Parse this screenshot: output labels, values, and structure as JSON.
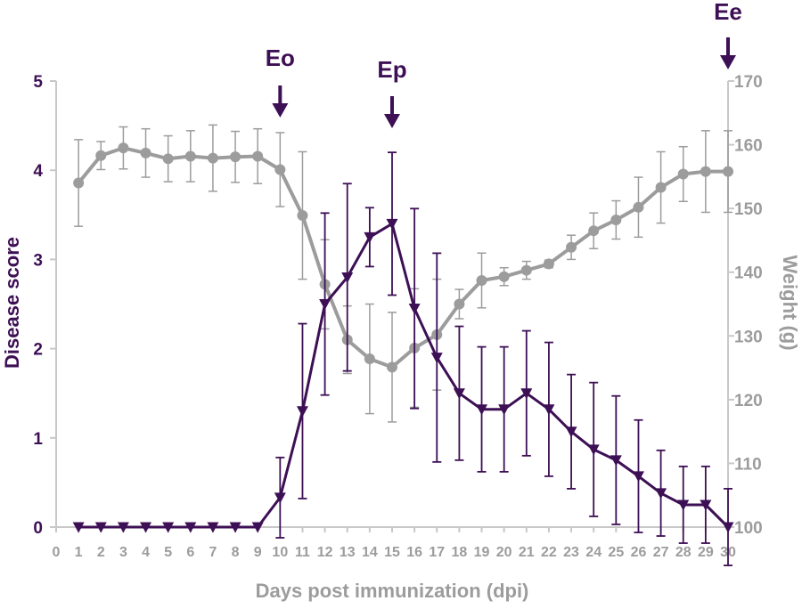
{
  "chart_data": {
    "type": "line",
    "xlabel": "Days post immunization (dpi)",
    "x": [
      1,
      2,
      3,
      4,
      5,
      6,
      7,
      8,
      9,
      10,
      11,
      12,
      13,
      14,
      15,
      16,
      17,
      18,
      19,
      20,
      21,
      22,
      23,
      24,
      25,
      26,
      27,
      28,
      29,
      30
    ],
    "x_ticks": [
      0,
      1,
      2,
      3,
      4,
      5,
      6,
      7,
      8,
      9,
      10,
      11,
      12,
      13,
      14,
      15,
      16,
      17,
      18,
      19,
      20,
      21,
      22,
      23,
      24,
      25,
      26,
      27,
      28,
      29,
      30
    ],
    "xlim": [
      0,
      30
    ],
    "y_left": {
      "label": "Disease score",
      "lim": [
        0,
        5
      ],
      "ticks": [
        0,
        1,
        2,
        3,
        4,
        5
      ],
      "color": "#3d0f55"
    },
    "y_right": {
      "label": "Weight (g)",
      "lim": [
        100,
        170
      ],
      "ticks": [
        100,
        110,
        120,
        130,
        140,
        150,
        160,
        170
      ],
      "color": "#9c9c9c"
    },
    "grid": false,
    "series": [
      {
        "axis": "left",
        "marker": "triangle-down",
        "color": "#3d0f55",
        "values": [
          0,
          0,
          0,
          0,
          0,
          0,
          0,
          0,
          0,
          0.33,
          1.3,
          2.5,
          2.8,
          3.25,
          3.4,
          2.45,
          1.9,
          1.5,
          1.32,
          1.32,
          1.5,
          1.32,
          1.07,
          0.87,
          0.75,
          0.57,
          0.38,
          0.25,
          0.25,
          0
        ],
        "error": [
          0,
          0,
          0,
          0,
          0,
          0,
          0,
          0,
          0,
          0.45,
          0.98,
          1.02,
          1.05,
          0.33,
          0.8,
          1.12,
          1.17,
          0.75,
          0.7,
          0.7,
          0.7,
          0.75,
          0.64,
          0.75,
          0.72,
          0.63,
          0.48,
          0.43,
          0.43,
          0.43
        ]
      },
      {
        "axis": "right",
        "marker": "circle",
        "color": "#9c9c9c",
        "values": [
          154,
          158.3,
          159.5,
          158.7,
          157.8,
          158.2,
          157.9,
          158.1,
          158.2,
          156.1,
          148.9,
          138.1,
          129.4,
          126.4,
          125.1,
          128.1,
          130.2,
          135.0,
          138.7,
          139.3,
          140.3,
          141.3,
          143.9,
          146.5,
          148.2,
          150.2,
          153.3,
          155.4,
          155.8,
          155.8
        ],
        "error": [
          6.8,
          2.2,
          3.3,
          3.8,
          3.6,
          4.0,
          5.2,
          4.0,
          4.3,
          5.8,
          10,
          7,
          5.3,
          8.6,
          8.6,
          9.3,
          8.7,
          2.3,
          4.3,
          1.4,
          1.4,
          0.6,
          1.9,
          2.8,
          3.0,
          4.7,
          5.6,
          4.3,
          6.4,
          6.4
        ]
      }
    ],
    "annotations": [
      {
        "label": "Eo",
        "x": 10
      },
      {
        "label": "Ep",
        "x": 15
      },
      {
        "label": "Ee",
        "x": 30
      }
    ]
  }
}
